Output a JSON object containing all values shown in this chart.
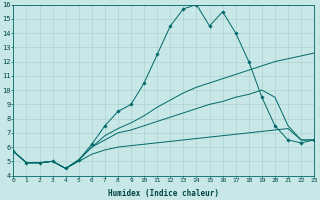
{
  "xlabel": "Humidex (Indice chaleur)",
  "xlim": [
    0,
    23
  ],
  "ylim": [
    4,
    16
  ],
  "xticks": [
    0,
    1,
    2,
    3,
    4,
    5,
    6,
    7,
    8,
    9,
    10,
    11,
    12,
    13,
    14,
    15,
    16,
    17,
    18,
    19,
    20,
    21,
    22,
    23
  ],
  "yticks": [
    4,
    5,
    6,
    7,
    8,
    9,
    10,
    11,
    12,
    13,
    14,
    15,
    16
  ],
  "bg_color": "#c8e8e8",
  "line_color": "#006868",
  "grid_color": "#a8cccc",
  "lines": [
    {
      "x": [
        0,
        1,
        2,
        3,
        4,
        5,
        6,
        7,
        8,
        9,
        10,
        11,
        12,
        13,
        14,
        15,
        16,
        17,
        18,
        19,
        20,
        21,
        22,
        23
      ],
      "y": [
        5.7,
        4.9,
        4.9,
        5.0,
        4.5,
        5.1,
        6.2,
        7.5,
        8.5,
        9.0,
        10.5,
        12.5,
        14.5,
        15.7,
        16.0,
        14.5,
        15.5,
        14.0,
        12.0,
        9.5,
        7.5,
        6.5,
        6.3,
        6.5
      ],
      "marker": "D"
    },
    {
      "x": [
        0,
        1,
        2,
        3,
        4,
        5,
        6,
        7,
        8,
        9,
        10,
        11,
        12,
        13,
        14,
        15,
        16,
        17,
        18,
        19,
        20,
        21,
        22,
        23
      ],
      "y": [
        5.7,
        4.9,
        4.9,
        5.0,
        4.5,
        5.1,
        6.0,
        6.8,
        7.3,
        7.7,
        8.2,
        8.8,
        9.3,
        9.8,
        10.2,
        10.5,
        10.8,
        11.1,
        11.4,
        11.7,
        12.0,
        12.2,
        12.4,
        12.6
      ],
      "marker": null
    },
    {
      "x": [
        0,
        1,
        2,
        3,
        4,
        5,
        6,
        7,
        8,
        9,
        10,
        11,
        12,
        13,
        14,
        15,
        16,
        17,
        18,
        19,
        20,
        21,
        22,
        23
      ],
      "y": [
        5.7,
        4.9,
        4.9,
        5.0,
        4.5,
        5.1,
        6.0,
        6.5,
        7.0,
        7.2,
        7.5,
        7.8,
        8.1,
        8.4,
        8.7,
        9.0,
        9.2,
        9.5,
        9.7,
        10.0,
        9.5,
        7.5,
        6.5,
        6.5
      ],
      "marker": null
    },
    {
      "x": [
        0,
        1,
        2,
        3,
        4,
        5,
        6,
        7,
        8,
        9,
        10,
        11,
        12,
        13,
        14,
        15,
        16,
        17,
        18,
        19,
        20,
        21,
        22,
        23
      ],
      "y": [
        5.7,
        4.9,
        4.9,
        5.0,
        4.5,
        5.0,
        5.5,
        5.8,
        6.0,
        6.1,
        6.2,
        6.3,
        6.4,
        6.5,
        6.6,
        6.7,
        6.8,
        6.9,
        7.0,
        7.1,
        7.2,
        7.3,
        6.5,
        6.5
      ],
      "marker": null
    }
  ]
}
